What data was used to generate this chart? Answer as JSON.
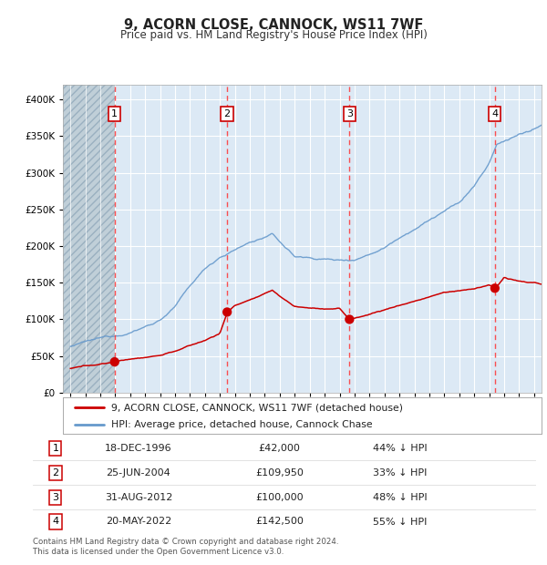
{
  "title": "9, ACORN CLOSE, CANNOCK, WS11 7WF",
  "subtitle": "Price paid vs. HM Land Registry's House Price Index (HPI)",
  "plot_bg_color": "#dce9f5",
  "red_line_color": "#cc0000",
  "blue_line_color": "#6699cc",
  "sales": [
    {
      "date_num": 1996.96,
      "price": 42000,
      "label": "1",
      "date_str": "18-DEC-1996",
      "pct": "44% ↓ HPI"
    },
    {
      "date_num": 2004.48,
      "price": 109950,
      "label": "2",
      "date_str": "25-JUN-2004",
      "pct": "33% ↓ HPI"
    },
    {
      "date_num": 2012.66,
      "price": 100000,
      "label": "3",
      "date_str": "31-AUG-2012",
      "pct": "48% ↓ HPI"
    },
    {
      "date_num": 2022.38,
      "price": 142500,
      "label": "4",
      "date_str": "20-MAY-2022",
      "pct": "55% ↓ HPI"
    }
  ],
  "ylim": [
    0,
    420000
  ],
  "xlim": [
    1993.5,
    2025.5
  ],
  "yticks": [
    0,
    50000,
    100000,
    150000,
    200000,
    250000,
    300000,
    350000,
    400000
  ],
  "legend_red_label": "9, ACORN CLOSE, CANNOCK, WS11 7WF (detached house)",
  "legend_blue_label": "HPI: Average price, detached house, Cannock Chase",
  "footer_text": "Contains HM Land Registry data © Crown copyright and database right 2024.\nThis data is licensed under the Open Government Licence v3.0.",
  "table_rows": [
    [
      "1",
      "18-DEC-1996",
      "£42,000",
      "44% ↓ HPI"
    ],
    [
      "2",
      "25-JUN-2004",
      "£109,950",
      "33% ↓ HPI"
    ],
    [
      "3",
      "31-AUG-2012",
      "£100,000",
      "48% ↓ HPI"
    ],
    [
      "4",
      "20-MAY-2022",
      "£142,500",
      "55% ↓ HPI"
    ]
  ],
  "blue_anchors": [
    [
      1994.0,
      63000
    ],
    [
      1995.0,
      68000
    ],
    [
      1996.0,
      72000
    ],
    [
      1997.0,
      76000
    ],
    [
      1998.0,
      82000
    ],
    [
      1999.0,
      90000
    ],
    [
      2000.0,
      100000
    ],
    [
      2001.0,
      118000
    ],
    [
      2002.0,
      145000
    ],
    [
      2003.0,
      168000
    ],
    [
      2004.0,
      185000
    ],
    [
      2005.0,
      195000
    ],
    [
      2006.0,
      205000
    ],
    [
      2007.0,
      212000
    ],
    [
      2007.5,
      215000
    ],
    [
      2008.0,
      205000
    ],
    [
      2009.0,
      185000
    ],
    [
      2010.0,
      183000
    ],
    [
      2011.0,
      182000
    ],
    [
      2012.0,
      180000
    ],
    [
      2013.0,
      182000
    ],
    [
      2014.0,
      190000
    ],
    [
      2015.0,
      200000
    ],
    [
      2016.0,
      215000
    ],
    [
      2017.0,
      228000
    ],
    [
      2018.0,
      240000
    ],
    [
      2019.0,
      252000
    ],
    [
      2020.0,
      262000
    ],
    [
      2021.0,
      285000
    ],
    [
      2022.0,
      315000
    ],
    [
      2022.5,
      340000
    ],
    [
      2023.0,
      345000
    ],
    [
      2024.0,
      355000
    ],
    [
      2025.0,
      360000
    ],
    [
      2025.5,
      365000
    ]
  ],
  "red_anchors": [
    [
      1994.0,
      33000
    ],
    [
      1995.0,
      36000
    ],
    [
      1996.0,
      39000
    ],
    [
      1996.96,
      42000
    ],
    [
      1997.5,
      44000
    ],
    [
      1998.0,
      46000
    ],
    [
      1999.0,
      49000
    ],
    [
      2000.0,
      52000
    ],
    [
      2001.0,
      58000
    ],
    [
      2002.0,
      65000
    ],
    [
      2003.0,
      72000
    ],
    [
      2004.0,
      82000
    ],
    [
      2004.48,
      109950
    ],
    [
      2005.0,
      120000
    ],
    [
      2006.0,
      128000
    ],
    [
      2007.0,
      135000
    ],
    [
      2007.5,
      140000
    ],
    [
      2008.0,
      132000
    ],
    [
      2009.0,
      118000
    ],
    [
      2010.0,
      116000
    ],
    [
      2011.0,
      115000
    ],
    [
      2012.0,
      116000
    ],
    [
      2012.66,
      100000
    ],
    [
      2013.0,
      102000
    ],
    [
      2014.0,
      108000
    ],
    [
      2015.0,
      114000
    ],
    [
      2016.0,
      120000
    ],
    [
      2017.0,
      126000
    ],
    [
      2018.0,
      132000
    ],
    [
      2019.0,
      138000
    ],
    [
      2020.0,
      140000
    ],
    [
      2021.0,
      143000
    ],
    [
      2022.0,
      148000
    ],
    [
      2022.38,
      142500
    ],
    [
      2023.0,
      158000
    ],
    [
      2023.5,
      155000
    ],
    [
      2024.0,
      152000
    ],
    [
      2024.5,
      150000
    ],
    [
      2025.0,
      150000
    ],
    [
      2025.5,
      148000
    ]
  ]
}
